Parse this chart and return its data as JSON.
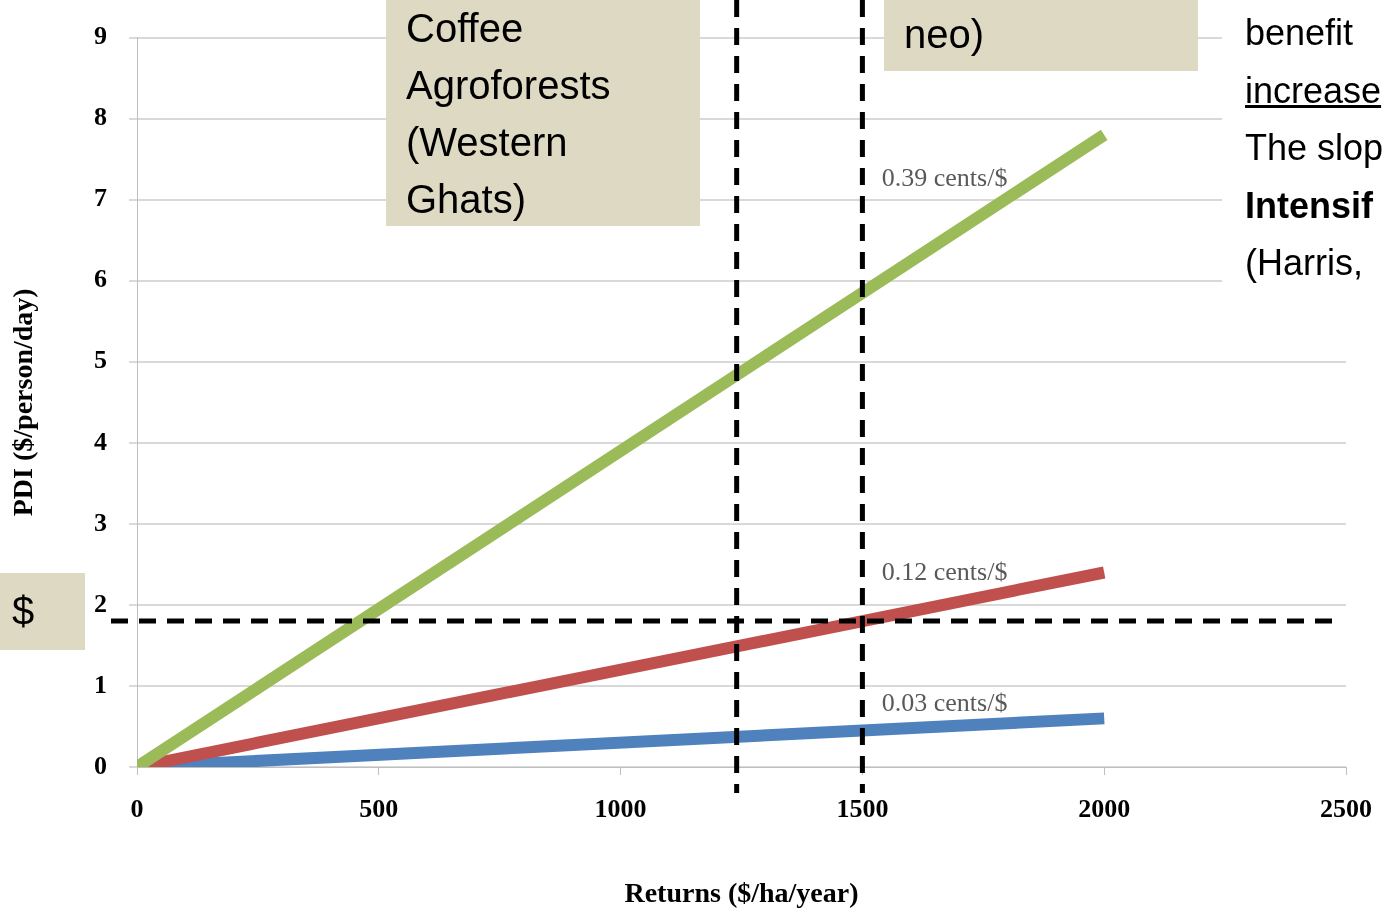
{
  "chart_data": {
    "type": "line",
    "xlabel": "Returns ($/ha/year)",
    "ylabel": "PDI ($/person/day)",
    "x": [
      0,
      2000
    ],
    "series": [
      {
        "name": "0.39 cents/$",
        "color": "#9bbb59",
        "values": [
          0,
          7.8
        ]
      },
      {
        "name": "0.12 cents/$",
        "color": "#c0504d",
        "values": [
          0,
          2.4
        ]
      },
      {
        "name": "0.03 cents/$",
        "color": "#4f81bd",
        "values": [
          0,
          0.6
        ]
      }
    ],
    "xlim": [
      0,
      2500
    ],
    "xticks": [
      0,
      500,
      1000,
      1500,
      2000,
      2500
    ],
    "ylim": [
      0,
      9
    ],
    "yticks": [
      0,
      1,
      2,
      3,
      4,
      5,
      6,
      7,
      8,
      9
    ],
    "grid": "y",
    "legend": false,
    "ref_lines": [
      {
        "axis": "x",
        "value": 1240,
        "color": "#000000",
        "line_style": "dashed"
      },
      {
        "axis": "x",
        "value": 1500,
        "color": "#000000",
        "line_style": "dashed"
      },
      {
        "axis": "y",
        "value": 1.8,
        "color": "#000000",
        "line_style": "dashed"
      }
    ],
    "annotations": [
      "Coffee Agroforests (Western Ghats)",
      "neo)",
      "benefit",
      "increase",
      "The slop",
      "Intensif",
      "(Harris,",
      "$"
    ]
  }
}
